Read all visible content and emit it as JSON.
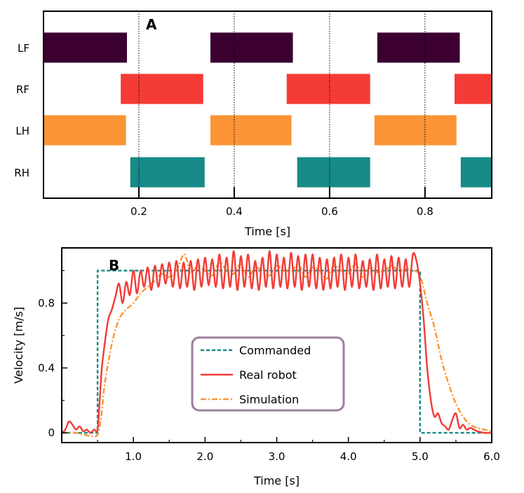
{
  "chart_data": [
    {
      "type": "gantt",
      "panel_label": "A",
      "xlabel": "Time [s]",
      "xlim": [
        0,
        0.94
      ],
      "xticks": [
        0.2,
        0.4,
        0.6,
        0.8
      ],
      "xtick_labels": [
        "0.2",
        "0.4",
        "0.6",
        "0.8"
      ],
      "vlines_dotted": [
        0.2,
        0.4,
        0.6,
        0.8
      ],
      "rows": [
        {
          "label": "LF",
          "color": "#3b0030",
          "intervals": [
            [
              0,
              0.175
            ],
            [
              0.35,
              0.523
            ],
            [
              0.7,
              0.873
            ]
          ]
        },
        {
          "label": "RF",
          "color": "#f53b36",
          "intervals": [
            [
              0.162,
              0.335
            ],
            [
              0.51,
              0.685
            ],
            [
              0.862,
              0.94
            ]
          ]
        },
        {
          "label": "LH",
          "color": "#fb9535",
          "intervals": [
            [
              0,
              0.173
            ],
            [
              0.35,
              0.52
            ],
            [
              0.694,
              0.866
            ]
          ]
        },
        {
          "label": "RH",
          "color": "#168a87",
          "intervals": [
            [
              0.182,
              0.338
            ],
            [
              0.532,
              0.685
            ],
            [
              0.875,
              0.94
            ]
          ]
        }
      ]
    },
    {
      "type": "line",
      "panel_label": "B",
      "xlabel": "Time [s]",
      "ylabel": "Velocity [m/s]",
      "xlim": [
        0,
        6.0
      ],
      "ylim": [
        -0.06,
        1.14
      ],
      "xticks": [
        1.0,
        2.0,
        3.0,
        4.0,
        5.0,
        6.0
      ],
      "xtick_labels": [
        "1.0",
        "2.0",
        "3.0",
        "4.0",
        "5.0",
        "6.0"
      ],
      "yticks": [
        0,
        0.4,
        0.8
      ],
      "ytick_labels": [
        "0",
        "0.4",
        "0.8"
      ],
      "legend_position": "center",
      "series": [
        {
          "name": "Commanded",
          "color": "#168a87",
          "style": "dashed",
          "x": [
            0,
            0.5,
            0.5,
            5.0,
            5.0,
            6.0
          ],
          "y": [
            0,
            0,
            1.0,
            1.0,
            0,
            0
          ]
        },
        {
          "name": "Real robot",
          "color": "#f23b35",
          "style": "solid",
          "x": [
            0,
            0.05,
            0.1,
            0.15,
            0.2,
            0.25,
            0.3,
            0.35,
            0.4,
            0.45,
            0.5,
            0.53,
            0.56,
            0.6,
            0.65,
            0.7,
            0.75,
            0.8,
            0.85,
            0.9,
            0.95,
            1.0,
            1.05,
            1.1,
            1.15,
            1.2,
            1.25,
            1.3,
            1.35,
            1.4,
            1.45,
            1.5,
            1.55,
            1.6,
            1.65,
            1.7,
            1.75,
            1.8,
            1.85,
            1.9,
            1.95,
            2.0,
            2.05,
            2.1,
            2.15,
            2.2,
            2.25,
            2.3,
            2.35,
            2.4,
            2.45,
            2.5,
            2.55,
            2.6,
            2.65,
            2.7,
            2.75,
            2.8,
            2.85,
            2.9,
            2.95,
            3.0,
            3.05,
            3.1,
            3.15,
            3.2,
            3.25,
            3.3,
            3.35,
            3.4,
            3.45,
            3.5,
            3.55,
            3.6,
            3.65,
            3.7,
            3.75,
            3.8,
            3.85,
            3.9,
            3.95,
            4.0,
            4.05,
            4.1,
            4.15,
            4.2,
            4.25,
            4.3,
            4.35,
            4.4,
            4.45,
            4.5,
            4.55,
            4.6,
            4.65,
            4.7,
            4.75,
            4.8,
            4.85,
            4.9,
            4.95,
            5.0,
            5.05,
            5.1,
            5.15,
            5.2,
            5.25,
            5.3,
            5.35,
            5.4,
            5.45,
            5.5,
            5.55,
            5.6,
            5.65,
            5.7,
            5.75,
            5.8,
            5.9,
            6.0
          ],
          "y": [
            0.0,
            0.02,
            0.07,
            0.05,
            0.02,
            0.04,
            0.01,
            0.02,
            0.0,
            0.02,
            0.02,
            0.2,
            0.4,
            0.55,
            0.7,
            0.76,
            0.84,
            0.92,
            0.8,
            0.93,
            0.85,
            1.0,
            0.86,
            1.0,
            0.9,
            1.02,
            0.88,
            1.03,
            0.9,
            1.04,
            0.92,
            1.05,
            0.9,
            1.06,
            0.89,
            1.05,
            0.9,
            1.06,
            0.88,
            1.07,
            0.9,
            1.08,
            0.91,
            1.07,
            0.9,
            1.1,
            0.89,
            1.08,
            0.9,
            1.12,
            0.88,
            1.09,
            0.9,
            1.1,
            0.89,
            1.06,
            0.88,
            1.08,
            0.9,
            1.12,
            0.89,
            1.1,
            0.9,
            1.08,
            0.89,
            1.11,
            0.9,
            1.09,
            0.88,
            1.1,
            0.9,
            1.1,
            0.89,
            1.08,
            0.88,
            1.07,
            0.89,
            1.08,
            0.9,
            1.1,
            0.88,
            1.08,
            0.9,
            1.1,
            0.89,
            1.06,
            0.9,
            1.07,
            0.88,
            1.1,
            0.89,
            1.07,
            0.9,
            1.09,
            0.89,
            1.08,
            0.9,
            1.07,
            0.9,
            1.1,
            1.06,
            0.92,
            0.7,
            0.4,
            0.2,
            0.1,
            0.12,
            0.06,
            0.04,
            0.02,
            0.08,
            0.12,
            0.03,
            0.05,
            0.02,
            0.03,
            0.02,
            0.01,
            0.0,
            0.0
          ],
          "smooth": true
        },
        {
          "name": "Simulation",
          "color": "#fb9535",
          "style": "dashdot",
          "x": [
            0,
            0.2,
            0.4,
            0.5,
            0.55,
            0.6,
            0.7,
            0.8,
            0.9,
            1.0,
            1.1,
            1.2,
            1.3,
            1.4,
            1.5,
            1.6,
            1.7,
            1.75,
            1.8,
            1.9,
            2.0,
            2.1,
            2.2,
            2.3,
            2.4,
            2.5,
            2.6,
            2.7,
            2.8,
            2.9,
            3.0,
            3.1,
            3.2,
            3.3,
            3.4,
            3.5,
            3.6,
            3.7,
            3.8,
            3.9,
            4.0,
            4.1,
            4.2,
            4.3,
            4.4,
            4.5,
            4.6,
            4.7,
            4.8,
            4.9,
            5.0,
            5.1,
            5.2,
            5.3,
            5.4,
            5.5,
            5.6,
            5.7,
            5.8,
            5.9,
            6.0
          ],
          "y": [
            0.0,
            0.0,
            -0.02,
            -0.01,
            0.1,
            0.3,
            0.55,
            0.7,
            0.76,
            0.8,
            0.86,
            0.9,
            0.94,
            0.98,
            0.96,
            1.0,
            1.1,
            1.06,
            0.98,
            1.03,
            1.0,
            0.97,
            1.05,
            1.0,
            0.98,
            1.04,
            0.96,
            1.02,
            1.0,
            0.97,
            1.03,
            1.0,
            0.99,
            1.04,
            0.96,
            1.02,
            1.0,
            0.95,
            1.03,
            1.0,
            0.98,
            1.04,
            0.96,
            1.02,
            0.99,
            1.0,
            1.03,
            1.0,
            1.01,
            1.0,
            0.97,
            0.8,
            0.65,
            0.45,
            0.3,
            0.18,
            0.1,
            0.05,
            0.03,
            0.02,
            0.01
          ],
          "smooth": true
        }
      ]
    }
  ]
}
